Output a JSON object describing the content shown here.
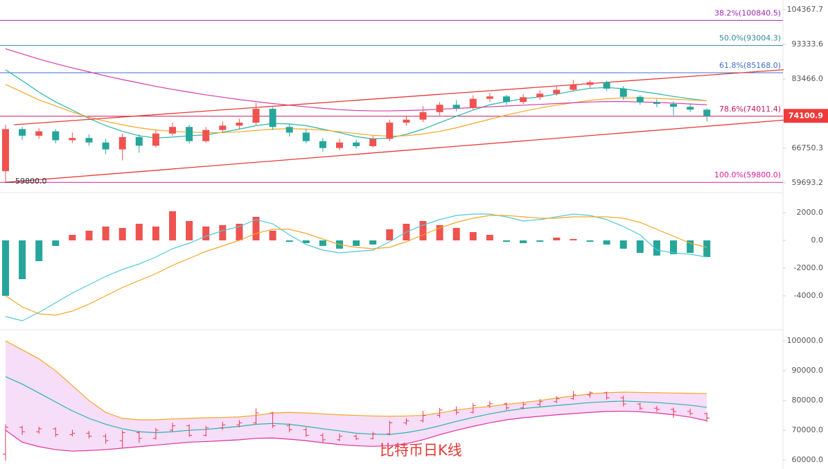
{
  "chart_data": [
    {
      "type": "candlestick",
      "log_scale": true,
      "up_color": "#ef5350",
      "down_color": "#26a69a",
      "open": [
        62000,
        71000,
        69500,
        70500,
        68500,
        69000,
        68000,
        66500,
        69200,
        67300,
        70000,
        71500,
        68300,
        70800,
        71800,
        72500,
        75800,
        71500,
        70200,
        68300,
        66800,
        68000,
        67200,
        68800,
        72500,
        73200,
        75000,
        76800,
        76000,
        78300,
        78900,
        77500,
        78700,
        79600,
        80600,
        81900,
        82600,
        80900,
        78800,
        77400,
        77000,
        76300,
        75600
      ],
      "high": [
        72000,
        71500,
        71200,
        71000,
        70200,
        69800,
        68800,
        70000,
        69800,
        70800,
        72500,
        72000,
        71500,
        72800,
        73400,
        77300,
        76200,
        72300,
        71000,
        69000,
        68900,
        68600,
        69500,
        73200,
        74000,
        76500,
        77500,
        78000,
        79200,
        79800,
        79300,
        79500,
        80500,
        81500,
        83200,
        83100,
        83000,
        81600,
        79200,
        78200,
        77600,
        77200,
        75900
      ],
      "low": [
        59800,
        68500,
        68800,
        67800,
        67900,
        67300,
        65500,
        64200,
        65800,
        66900,
        69500,
        67800,
        67900,
        70200,
        71000,
        72000,
        70800,
        69300,
        67800,
        66000,
        66300,
        66700,
        66900,
        68300,
        71800,
        72600,
        74200,
        75200,
        75600,
        77500,
        76800,
        77000,
        78000,
        79100,
        80200,
        80900,
        80300,
        78000,
        76800,
        76200,
        74200,
        75000,
        72800
      ],
      "close": [
        71000,
        69500,
        70500,
        68500,
        69000,
        68000,
        66500,
        69200,
        67300,
        70000,
        71500,
        68300,
        70800,
        71800,
        72500,
        75800,
        71500,
        70200,
        68300,
        66800,
        68000,
        67200,
        68800,
        72500,
        73200,
        75000,
        76800,
        76000,
        78300,
        78900,
        77500,
        78700,
        79600,
        80600,
        81900,
        82600,
        80900,
        78800,
        77400,
        77000,
        76300,
        75600,
        74100
      ],
      "lines": [
        {
          "color": "#26b5a6",
          "values": [
            86000,
            83000,
            80000,
            77500,
            75500,
            73500,
            71800,
            70500,
            69500,
            69000,
            69200,
            69500,
            69700,
            70300,
            71000,
            71800,
            72300,
            72200,
            71800,
            71000,
            70200,
            69300,
            68800,
            69000,
            69800,
            71000,
            72500,
            74000,
            75500,
            76800,
            77600,
            78300,
            78800,
            79500,
            80300,
            81000,
            81200,
            80900,
            80200,
            79600,
            78900,
            78300,
            77800
          ]
        },
        {
          "color": "#f5a623",
          "values": [
            82000,
            80000,
            78000,
            76500,
            75000,
            73800,
            72800,
            72000,
            71300,
            70800,
            70500,
            70300,
            70200,
            70200,
            70400,
            70700,
            71000,
            71100,
            71000,
            70800,
            70400,
            70000,
            69600,
            69400,
            69500,
            69900,
            70500,
            71300,
            72300,
            73300,
            74300,
            75200,
            76000,
            76700,
            77300,
            77900,
            78300,
            78500,
            78500,
            78400,
            78200,
            78000,
            77800
          ]
        },
        {
          "color": "#d63ca6",
          "values": [
            92000,
            90500,
            89000,
            87700,
            86500,
            85400,
            84300,
            83300,
            82400,
            81500,
            80700,
            80000,
            79300,
            78700,
            78100,
            77600,
            77100,
            76700,
            76300,
            75900,
            75600,
            75400,
            75300,
            75300,
            75400,
            75500,
            75700,
            75900,
            76100,
            76300,
            76500,
            76700,
            76900,
            77100,
            77300,
            77500,
            77600,
            77600,
            77500,
            77400,
            77200,
            77000,
            76800
          ]
        }
      ],
      "trendlines": [
        {
          "color": "#e53935",
          "x": [
            0.5,
            46.6
          ],
          "values": [
            72000,
            86000
          ]
        },
        {
          "color": "#e53935",
          "x": [
            0,
            46.6
          ],
          "values": [
            59800,
            73100
          ]
        }
      ],
      "fib_levels": [
        {
          "value": 100840.5,
          "label": "38.2%(100840.5)",
          "color": "#9c27b0"
        },
        {
          "value": 93004.3,
          "label": "50.0%(93004.3)",
          "color": "#2e8b9a"
        },
        {
          "value": 85168.0,
          "label": "61.8%(85168.0)",
          "color": "#3f6fd1"
        },
        {
          "value": 74011.4,
          "label": "78.6%(74011.4)",
          "color": "#c2185b"
        },
        {
          "value": 59800.0,
          "label": "100.0%(59800.0)",
          "color": "#d81b9c"
        }
      ],
      "low_annotation": {
        "value": 59800,
        "label": "59800.0"
      },
      "last_price": 74100.9,
      "ylim": [
        59693.2,
        104367.7
      ],
      "yticks": [
        104367.7,
        93333.6,
        {
          "value": 83466.0,
          "label": "83466.0"
        },
        66750.3,
        59693.2
      ]
    },
    {
      "type": "bar",
      "up_color": "#ef5350",
      "down_color": "#26a69a",
      "values": [
        -4000,
        -2800,
        -1500,
        -400,
        400,
        700,
        1000,
        900,
        1200,
        1000,
        2100,
        1400,
        1000,
        1100,
        1200,
        1700,
        700,
        -100,
        -200,
        -400,
        -600,
        -400,
        -300,
        800,
        1200,
        1400,
        1100,
        900,
        600,
        400,
        -100,
        -200,
        -100,
        200,
        100,
        -100,
        -300,
        -600,
        -900,
        -1100,
        -1000,
        -900,
        -1200
      ],
      "lines": [
        {
          "color": "#4dc8d8",
          "values": [
            -5500,
            -5800,
            -5200,
            -4500,
            -3800,
            -3200,
            -2600,
            -2100,
            -1700,
            -1200,
            -600,
            -200,
            300,
            700,
            1000,
            1500,
            1200,
            400,
            -300,
            -700,
            -900,
            -800,
            -700,
            -100,
            600,
            1100,
            1500,
            1800,
            1900,
            1900,
            1700,
            1400,
            1500,
            1700,
            1900,
            1800,
            1500,
            1000,
            400,
            -700,
            -900,
            -1000,
            -1200
          ]
        },
        {
          "color": "#f5a623",
          "values": [
            -4000,
            -4800,
            -5300,
            -5400,
            -5100,
            -4600,
            -4000,
            -3400,
            -2900,
            -2400,
            -1800,
            -1300,
            -800,
            -400,
            0,
            500,
            800,
            800,
            500,
            100,
            -300,
            -500,
            -600,
            -500,
            -100,
            400,
            900,
            1300,
            1600,
            1800,
            1800,
            1700,
            1600,
            1600,
            1700,
            1700,
            1700,
            1600,
            1300,
            800,
            300,
            -200,
            -500
          ]
        }
      ],
      "ylim": [
        -6000,
        3000
      ],
      "yticks": [
        {
          "value": 2000,
          "label": "2000.0"
        },
        {
          "value": 0,
          "label": "0.0"
        },
        {
          "value": -2000,
          "label": "-2000.0"
        },
        {
          "value": -4000,
          "label": "-4000.0"
        }
      ]
    },
    {
      "type": "ohlc",
      "fill": "#f6ddf8",
      "bar_color": "#e53950",
      "bands": [
        {
          "color": "#f5a623",
          "values": [
            100000,
            97000,
            94000,
            90000,
            85000,
            80000,
            76000,
            74000,
            73500,
            73500,
            73800,
            74000,
            74200,
            74300,
            74500,
            75000,
            75800,
            76000,
            75800,
            75500,
            75200,
            75000,
            74800,
            74700,
            74800,
            75000,
            75800,
            76800,
            77500,
            78000,
            78700,
            79300,
            80000,
            80800,
            81500,
            82200,
            82600,
            82800,
            82700,
            82600,
            82500,
            82400,
            82300
          ]
        },
        {
          "color": "#26b5a6",
          "values": [
            88000,
            85500,
            82500,
            79500,
            76500,
            74000,
            72000,
            70500,
            69500,
            69200,
            69500,
            70000,
            70300,
            70800,
            71300,
            72000,
            72300,
            72000,
            71300,
            70500,
            69800,
            69000,
            68700,
            68600,
            69200,
            70200,
            71500,
            73000,
            74300,
            75500,
            76500,
            77300,
            77800,
            78300,
            78800,
            79300,
            79600,
            79800,
            79600,
            79300,
            78900,
            78400,
            77700
          ]
        },
        {
          "color": "#e0319a",
          "values": [
            70000,
            66000,
            64500,
            63500,
            63000,
            63200,
            63500,
            64000,
            64500,
            65000,
            65500,
            66000,
            66200,
            66500,
            66800,
            67300,
            67400,
            67000,
            66500,
            65800,
            65200,
            64800,
            64600,
            64800,
            65500,
            66800,
            68500,
            70000,
            71300,
            72500,
            73500,
            74200,
            74700,
            75200,
            75600,
            76000,
            76300,
            76400,
            76200,
            75800,
            75200,
            74400,
            73200
          ]
        }
      ],
      "watermark": "比特币日K线",
      "ylim": [
        57000,
        102800
      ],
      "yticks": [
        {
          "value": 100000,
          "label": "100000.0"
        },
        {
          "value": 90000,
          "label": "90000.0"
        },
        {
          "value": 80000,
          "label": "80000.0"
        },
        {
          "value": 70000,
          "label": "70000.0"
        },
        {
          "value": 60000,
          "label": "60000.0"
        }
      ]
    }
  ]
}
